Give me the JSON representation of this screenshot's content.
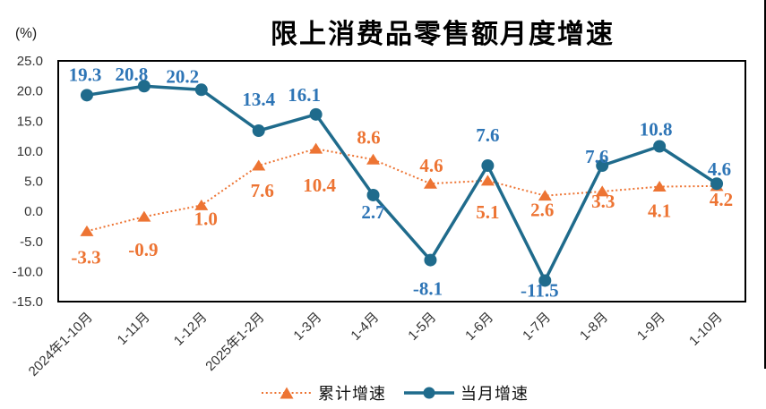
{
  "chart_data": {
    "type": "line",
    "title": "限上消费品零售额月度增速",
    "unit_label": "(%)",
    "categories": [
      "2024年1-10月",
      "1-11月",
      "1-12月",
      "2025年1-2月",
      "1-3月",
      "1-4月",
      "1-5月",
      "1-6月",
      "1-7月",
      "1-8月",
      "1-9月",
      "1-10月"
    ],
    "x_label_rotation": -45,
    "ylim": [
      -15,
      25
    ],
    "ytick_step": 5,
    "yticks": [
      "25.0",
      "20.0",
      "15.0",
      "10.0",
      "5.0",
      "0.0",
      "-5.0",
      "-10.0",
      "-15.0"
    ],
    "grid": false,
    "legend_position": "bottom",
    "series": [
      {
        "name": "累计增速",
        "values": [
          -3.3,
          -0.9,
          1.0,
          7.6,
          10.4,
          8.6,
          4.6,
          5.1,
          2.6,
          3.3,
          4.1,
          4.2
        ],
        "color": "#ED7433",
        "label_color": "#ED7433",
        "marker": "triangle",
        "line_style": "dotted",
        "label_positions": [
          "below",
          "below",
          "below",
          "below",
          "below",
          "above",
          "above",
          "below",
          "below",
          "below",
          "below",
          "below"
        ],
        "label_dx": [
          -1,
          -1,
          5,
          4,
          4,
          -5,
          1,
          0,
          -3,
          1,
          0,
          5
        ],
        "label_dy": [
          36,
          44,
          22,
          35,
          48,
          -18,
          -13,
          42,
          23,
          18,
          34,
          22
        ]
      },
      {
        "name": "当月增速",
        "values": [
          19.3,
          20.8,
          20.2,
          13.4,
          16.1,
          2.7,
          -8.1,
          7.6,
          -11.5,
          7.6,
          10.8,
          4.6
        ],
        "color": "#1F6B8C",
        "label_color": "#2E75B6",
        "marker": "circle",
        "line_style": "solid",
        "label_positions": [
          "above",
          "above",
          "above",
          "above",
          "above",
          "below",
          "below",
          "above",
          "below",
          "above",
          "above",
          "above"
        ],
        "label_dx": [
          -2,
          -14,
          -21,
          0,
          -13,
          0,
          -3,
          0,
          -6,
          -6,
          -4,
          3
        ],
        "label_dy": [
          -16,
          -6,
          -8,
          -28,
          -15,
          26,
          39,
          -27,
          18,
          -3,
          -12,
          -9
        ]
      }
    ]
  }
}
